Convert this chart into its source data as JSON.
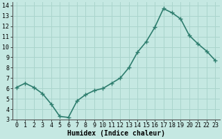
{
  "x": [
    0,
    1,
    2,
    3,
    4,
    5,
    6,
    7,
    8,
    9,
    10,
    11,
    12,
    13,
    14,
    15,
    16,
    17,
    18,
    19,
    20,
    21,
    22,
    23
  ],
  "y": [
    6.1,
    6.5,
    6.1,
    5.5,
    4.5,
    3.3,
    3.2,
    4.8,
    5.4,
    5.8,
    6.0,
    6.5,
    7.0,
    8.0,
    9.5,
    10.5,
    11.9,
    13.7,
    13.3,
    12.7,
    11.1,
    10.3,
    9.6,
    8.7
  ],
  "line_color": "#2e7d6e",
  "marker": "+",
  "marker_size": 4,
  "bg_color": "#c5e8e2",
  "grid_color": "#aad4cc",
  "xlabel": "Humidex (Indice chaleur)",
  "ylim": [
    3,
    14
  ],
  "xlim": [
    -0.5,
    23.5
  ],
  "yticks": [
    3,
    4,
    5,
    6,
    7,
    8,
    9,
    10,
    11,
    12,
    13,
    14
  ],
  "xticks": [
    0,
    1,
    2,
    3,
    4,
    5,
    6,
    7,
    8,
    9,
    10,
    11,
    12,
    13,
    14,
    15,
    16,
    17,
    18,
    19,
    20,
    21,
    22,
    23
  ],
  "xtick_labels": [
    "0",
    "1",
    "2",
    "3",
    "4",
    "5",
    "6",
    "7",
    "8",
    "9",
    "10",
    "11",
    "12",
    "13",
    "14",
    "15",
    "16",
    "17",
    "18",
    "19",
    "20",
    "21",
    "22",
    "23"
  ],
  "xlabel_fontsize": 7,
  "tick_fontsize": 6,
  "line_width": 1.2
}
